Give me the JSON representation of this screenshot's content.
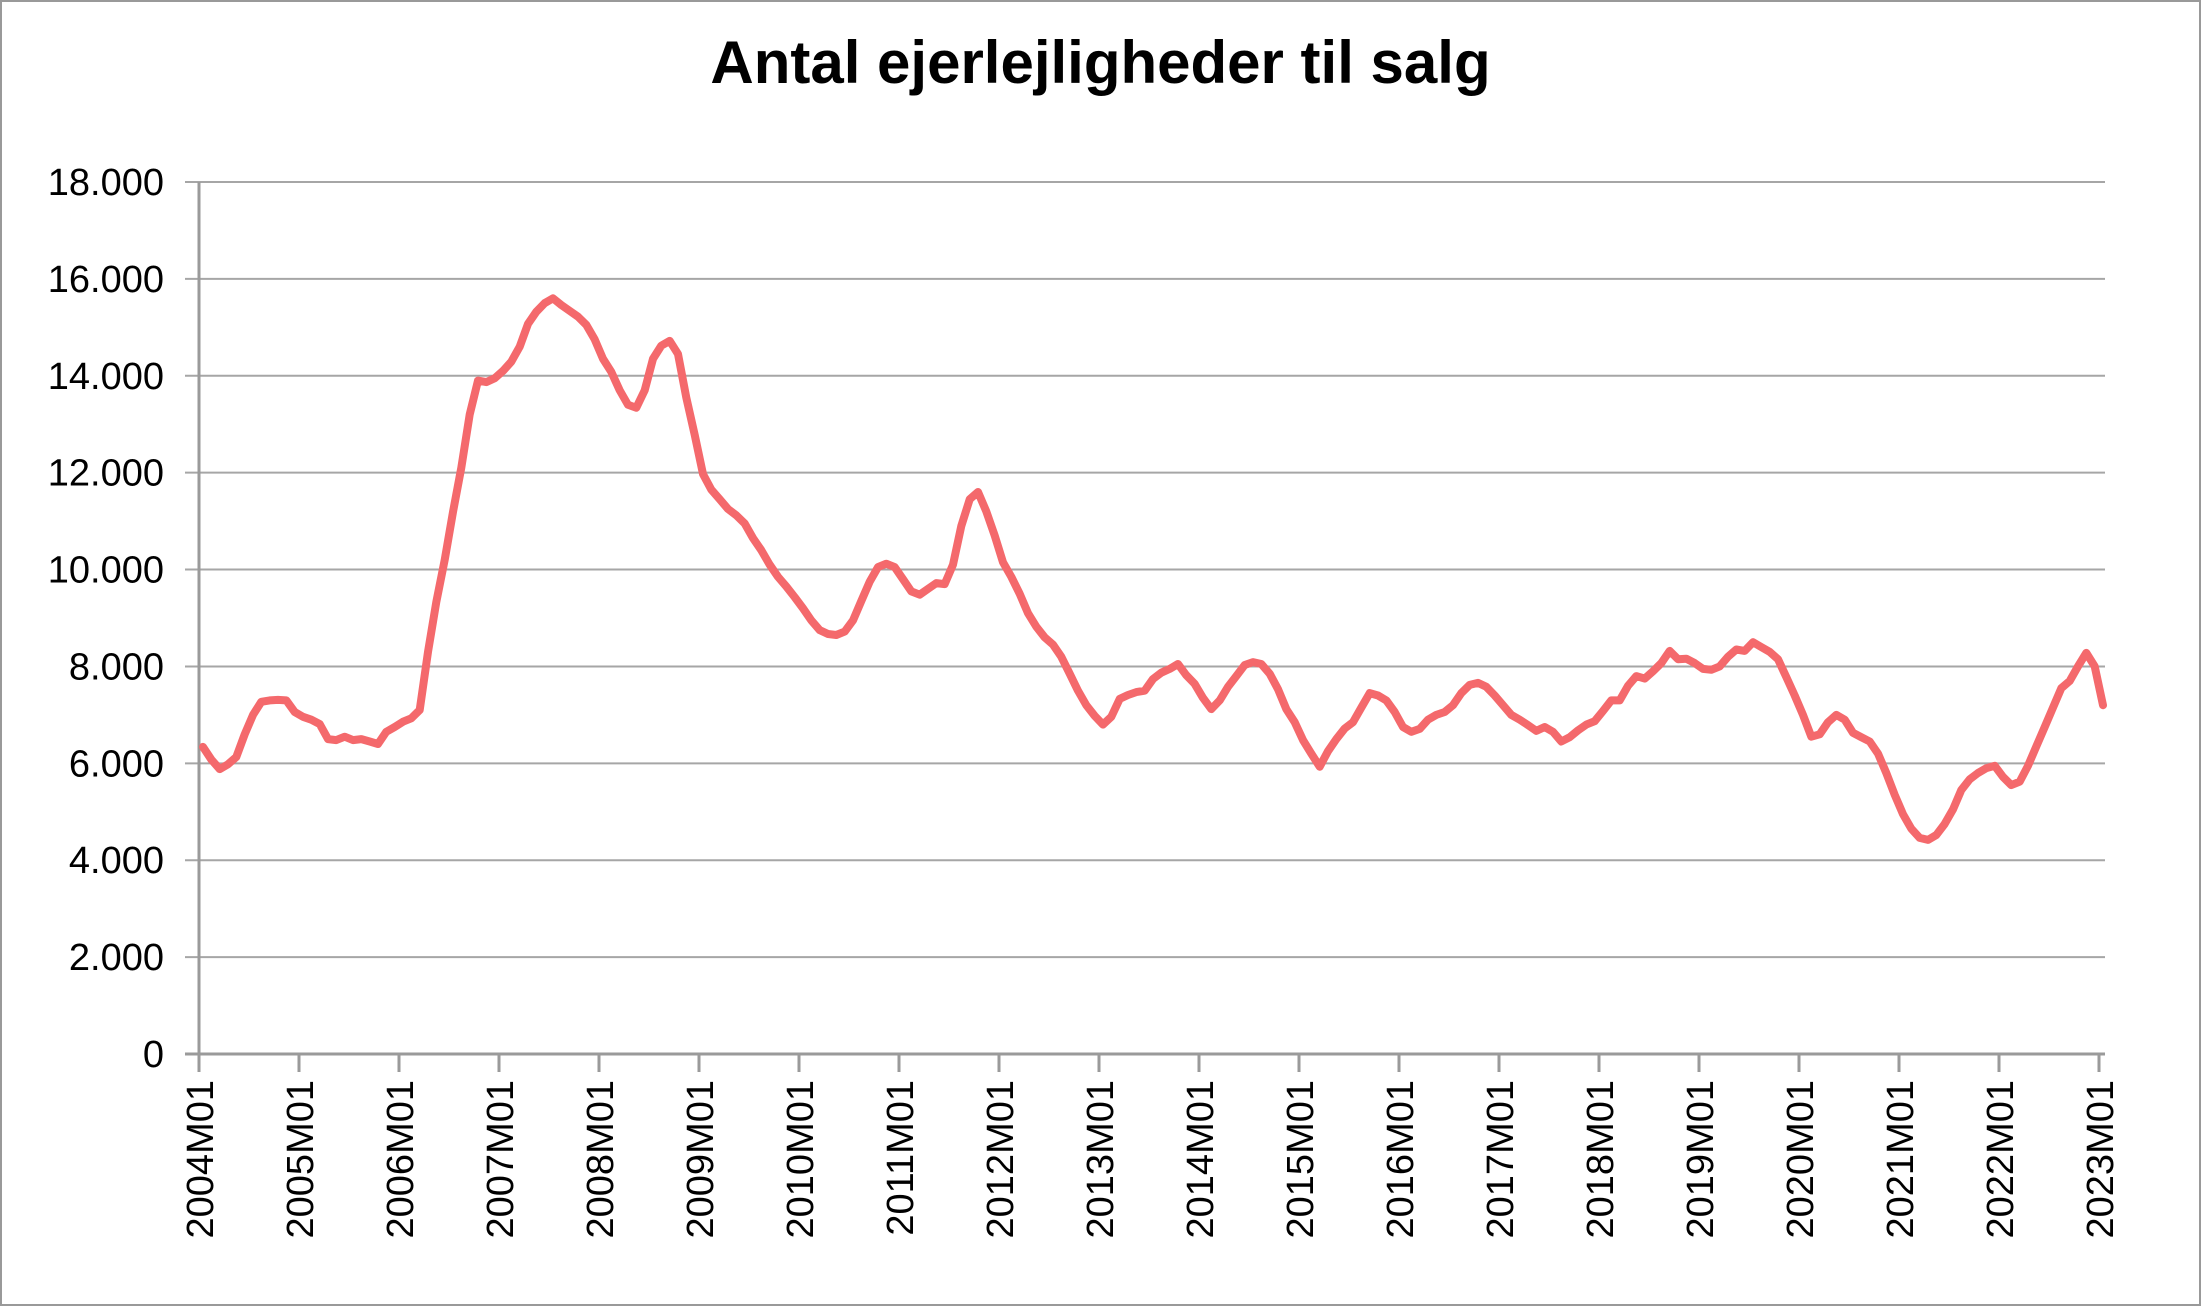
{
  "title": "Antal ejerlejligheder til salg",
  "chart_data": {
    "type": "line",
    "title": "Antal ejerlejligheder til salg",
    "xlabel": "",
    "ylabel": "",
    "grid": true,
    "legend_position": "none",
    "line_color": "#F4696C",
    "grid_color": "#A6A6A6",
    "y_axis": {
      "min": 0,
      "max": 18000,
      "step": 2000
    },
    "y_tick_labels": [
      "0",
      "2.000",
      "4.000",
      "6.000",
      "8.000",
      "10.000",
      "12.000",
      "14.000",
      "16.000",
      "18.000"
    ],
    "x_tick_labels": [
      "2004M01",
      "2005M01",
      "2006M01",
      "2007M01",
      "2008M01",
      "2009M01",
      "2010M01",
      "2011M01",
      "2012M01",
      "2013M01",
      "2014M01",
      "2015M01",
      "2016M01",
      "2017M01",
      "2018M01",
      "2019M01",
      "2020M01",
      "2021M01",
      "2022M01",
      "2023M01"
    ],
    "x_start": "2004M01",
    "x_end": "2023M01",
    "x_frequency": "monthly",
    "n_points": 229,
    "series": [
      {
        "name": "Antal ejerlejligheder til salg",
        "values": [
          6340,
          6080,
          5880,
          5980,
          6130,
          6600,
          7000,
          7270,
          7300,
          7310,
          7300,
          7060,
          6960,
          6900,
          6810,
          6500,
          6480,
          6550,
          6480,
          6500,
          6450,
          6400,
          6650,
          6750,
          6860,
          6930,
          7100,
          8300,
          9330,
          10200,
          11190,
          12100,
          13200,
          13900,
          13870,
          13950,
          14100,
          14290,
          14600,
          15070,
          15320,
          15500,
          15600,
          15460,
          15340,
          15220,
          15050,
          14750,
          14350,
          14080,
          13700,
          13400,
          13340,
          13700,
          14350,
          14620,
          14720,
          14450,
          13550,
          12780,
          11970,
          11650,
          11450,
          11250,
          11120,
          10950,
          10650,
          10400,
          10100,
          9850,
          9650,
          9430,
          9200,
          8950,
          8750,
          8670,
          8650,
          8720,
          8950,
          9350,
          9750,
          10050,
          10120,
          10050,
          9800,
          9550,
          9480,
          9600,
          9720,
          9700,
          10100,
          10900,
          11450,
          11600,
          11200,
          10700,
          10150,
          9850,
          9500,
          9100,
          8820,
          8600,
          8450,
          8200,
          7850,
          7500,
          7200,
          6980,
          6800,
          6960,
          7330,
          7410,
          7470,
          7500,
          7740,
          7870,
          7950,
          8050,
          7820,
          7640,
          7350,
          7120,
          7300,
          7580,
          7800,
          8030,
          8090,
          8050,
          7850,
          7530,
          7120,
          6850,
          6480,
          6200,
          5930,
          6250,
          6500,
          6720,
          6850,
          7150,
          7450,
          7400,
          7300,
          7060,
          6750,
          6650,
          6710,
          6900,
          7000,
          7060,
          7200,
          7450,
          7620,
          7660,
          7580,
          7400,
          7200,
          7000,
          6900,
          6790,
          6670,
          6750,
          6650,
          6450,
          6540,
          6680,
          6800,
          6870,
          7080,
          7300,
          7300,
          7600,
          7800,
          7750,
          7900,
          8070,
          8320,
          8150,
          8160,
          8070,
          7950,
          7930,
          8000,
          8200,
          8350,
          8320,
          8500,
          8400,
          8300,
          8150,
          7780,
          7400,
          7000,
          6550,
          6600,
          6850,
          7000,
          6900,
          6630,
          6540,
          6450,
          6200,
          5800,
          5350,
          4950,
          4650,
          4460,
          4420,
          4520,
          4750,
          5050,
          5450,
          5670,
          5800,
          5900,
          5950,
          5720,
          5550,
          5620,
          5950,
          6350,
          6750,
          7150,
          7550,
          7700,
          8000,
          8280,
          8000,
          7200
        ]
      }
    ]
  }
}
